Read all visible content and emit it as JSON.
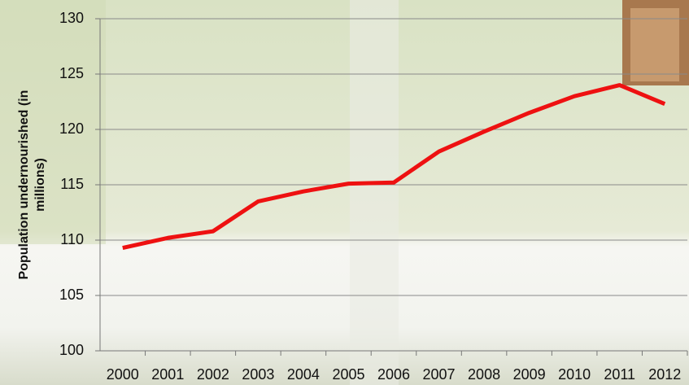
{
  "chart_data": {
    "type": "line",
    "y_label": "Population undernourished (in millions)",
    "categories": [
      "2000",
      "2001",
      "2002",
      "2003",
      "2004",
      "2005",
      "2006",
      "2007",
      "2008",
      "2009",
      "2010",
      "2011",
      "2012"
    ],
    "series": [
      {
        "name": "Population undernourished",
        "color": "#ee1111",
        "values": [
          109.3,
          110.2,
          110.8,
          113.5,
          114.4,
          115.1,
          115.2,
          118.0,
          119.8,
          121.5,
          123.0,
          124.0,
          122.3
        ]
      }
    ],
    "ylim": [
      100,
      130
    ],
    "yticks": [
      100,
      105,
      110,
      115,
      120,
      125,
      130
    ],
    "grid": true
  }
}
